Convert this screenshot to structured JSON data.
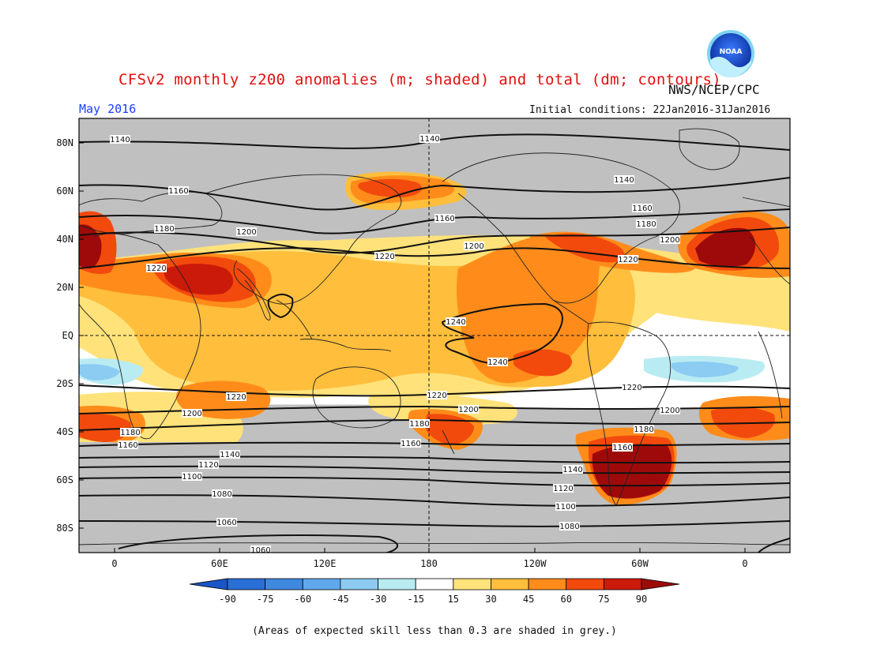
{
  "title": "CFSv2 monthly z200 anomalies (m; shaded) and total (dm; contours)",
  "agency": "NWS/NCEP/CPC",
  "month": "May 2016",
  "initial_conditions": "Initial conditions: 22Jan2016-31Jan2016",
  "footnote": "(Areas of expected skill less than 0.3 are shaded in grey.)",
  "logo_text": "NOAA",
  "colors": {
    "grey": "#c0c0c0",
    "white": "#ffffff",
    "land_line": "#222222",
    "contour": "#111111",
    "pos_15_30": "#ffe27a",
    "pos_30_45": "#ffbe3c",
    "pos_45_60": "#ff8c1a",
    "pos_60_75": "#f24a0d",
    "pos_75_90": "#cc1a0a",
    "pos_90": "#9e0a0a",
    "neg_15_30": "#b8ecf2",
    "neg_30_45": "#8ccbf2",
    "neg_45_60": "#5fa8ec",
    "neg_60_75": "#3f88e0",
    "neg_75_90": "#2a6fd6",
    "neg_90": "#1a55c8"
  },
  "map": {
    "projection": "equirectangular",
    "lon_range_label": "0 to 360 (starting near 15W)",
    "lat_ticks": [
      "80N",
      "60N",
      "40N",
      "20N",
      "EQ",
      "20S",
      "40S",
      "60S",
      "80S"
    ],
    "lon_ticks": [
      "0",
      "60E",
      "120E",
      "180",
      "120W",
      "60W",
      "0"
    ]
  },
  "contour_labels": [
    "1140",
    "1140",
    "1160",
    "1140",
    "1160",
    "1160",
    "1180",
    "1180",
    "1200",
    "1200",
    "1220",
    "1220",
    "1200",
    "1220",
    "1240",
    "1240",
    "1220",
    "1220",
    "1220",
    "1200",
    "1200",
    "1200",
    "1180",
    "1180",
    "1180",
    "1160",
    "1160",
    "1160",
    "1140",
    "1140",
    "1120",
    "1120",
    "1100",
    "1100",
    "1080",
    "1080",
    "1060",
    "1060"
  ],
  "colorbar": {
    "ticks": [
      "-90",
      "-75",
      "-60",
      "-45",
      "-30",
      "-15",
      "15",
      "30",
      "45",
      "60",
      "75",
      "90"
    ],
    "boxes": [
      "neg_90",
      "neg_75_90",
      "neg_60_75",
      "neg_45_60",
      "neg_30_45",
      "neg_15_30",
      "white",
      "pos_15_30",
      "pos_30_45",
      "pos_45_60",
      "pos_60_75",
      "pos_75_90",
      "pos_90"
    ]
  }
}
